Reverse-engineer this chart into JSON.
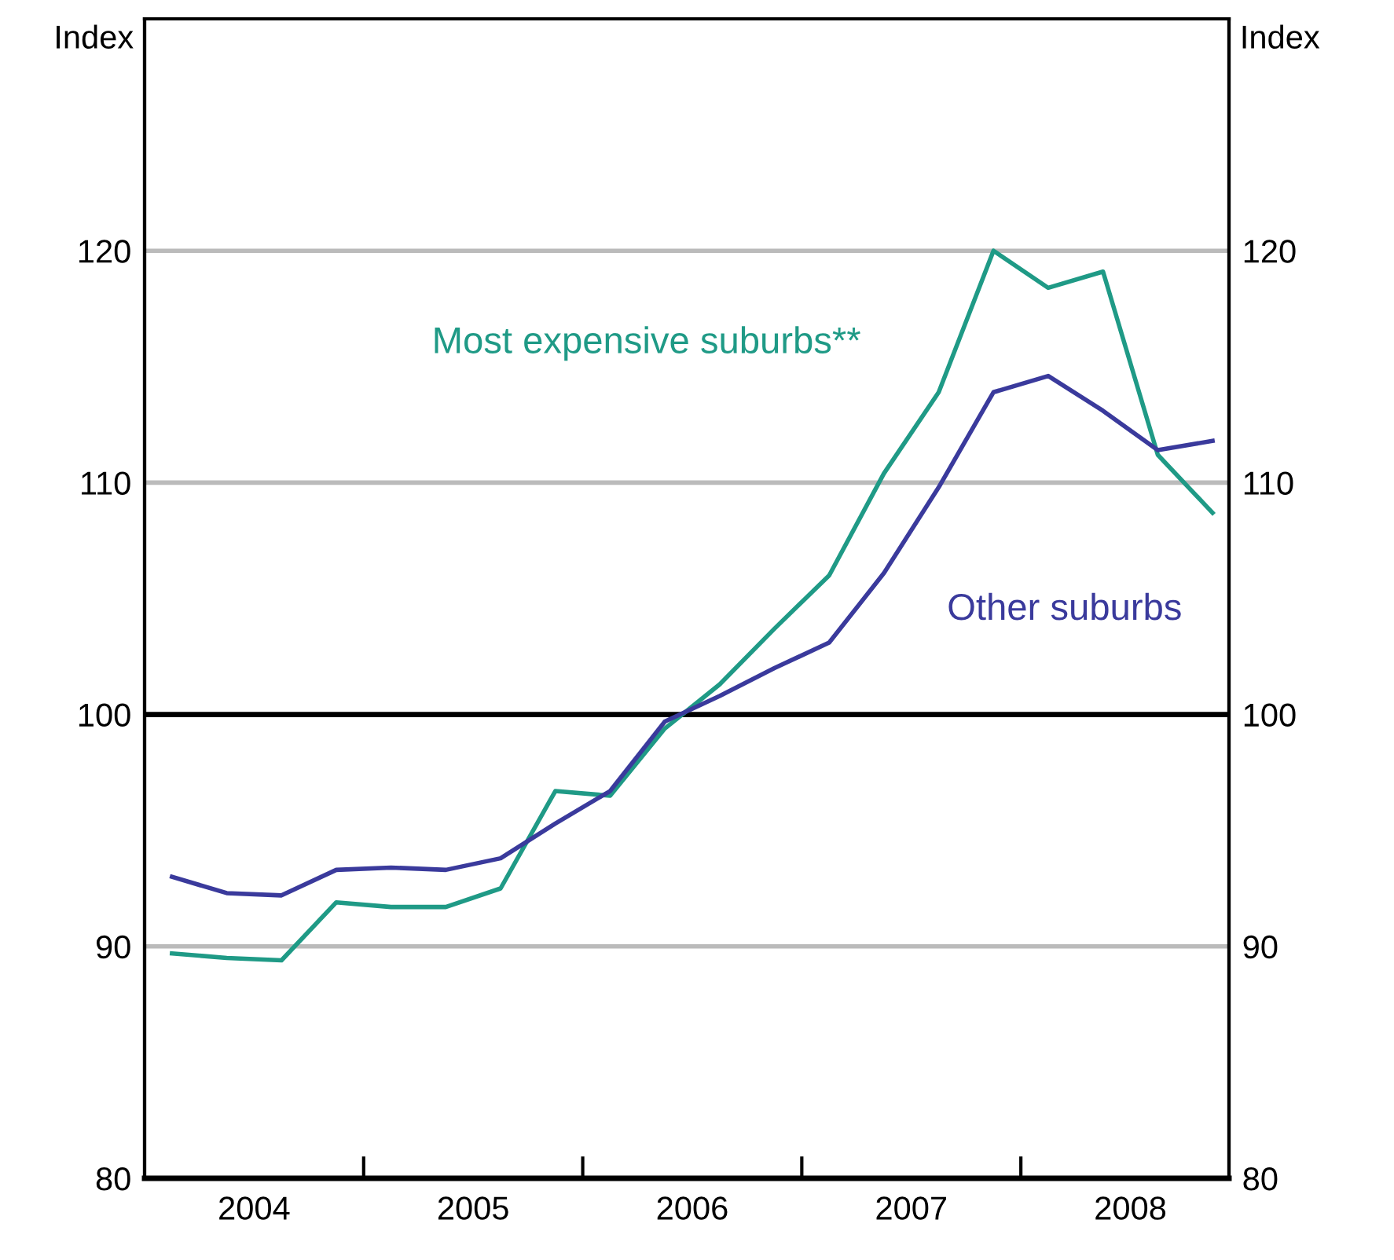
{
  "chart_data": {
    "type": "line",
    "ylabel": "Index",
    "y2label": "Index",
    "x": [
      2004.125,
      2004.375,
      2004.625,
      2004.875,
      2005.125,
      2005.375,
      2005.625,
      2005.875,
      2006.125,
      2006.375,
      2006.625,
      2006.875,
      2007.125,
      2007.375,
      2007.625,
      2007.875,
      2008.125,
      2008.375,
      2008.625,
      2008.875
    ],
    "series": [
      {
        "name": "Most expensive suburbs**",
        "color": "#1f9a86",
        "values": [
          89.7,
          89.5,
          89.4,
          91.9,
          91.7,
          91.7,
          92.5,
          96.7,
          96.5,
          99.4,
          101.3,
          103.7,
          106.0,
          110.4,
          113.9,
          120.0,
          118.4,
          119.1,
          111.2,
          108.7
        ]
      },
      {
        "name": "Other suburbs",
        "color": "#3a3a9c",
        "values": [
          93.0,
          92.3,
          92.2,
          93.3,
          93.4,
          93.3,
          93.8,
          95.3,
          96.7,
          99.7,
          100.8,
          102.0,
          103.1,
          106.1,
          109.8,
          113.9,
          114.6,
          113.1,
          111.4,
          111.8
        ]
      }
    ],
    "xlim": [
      2004,
      2008.95
    ],
    "xticks": [
      {
        "value": 2004.5,
        "label": "2004"
      },
      {
        "value": 2005,
        "label": null
      },
      {
        "value": 2005.5,
        "label": "2005"
      },
      {
        "value": 2006,
        "label": null
      },
      {
        "value": 2006.5,
        "label": "2006"
      },
      {
        "value": 2007,
        "label": null
      },
      {
        "value": 2007.5,
        "label": "2007"
      },
      {
        "value": 2008,
        "label": null
      },
      {
        "value": 2008.5,
        "label": "2008"
      }
    ],
    "ylim": [
      80,
      130
    ],
    "yticks": [
      80,
      90,
      100,
      110,
      120
    ],
    "y2lim": [
      80,
      130
    ],
    "y2ticks": [
      80,
      90,
      100,
      110,
      120
    ],
    "ref_lines": [
      {
        "axis": "y",
        "value": 100,
        "color": "#000000"
      }
    ],
    "grid": "y",
    "legend": false,
    "marker": "none",
    "line_style": "solid"
  }
}
